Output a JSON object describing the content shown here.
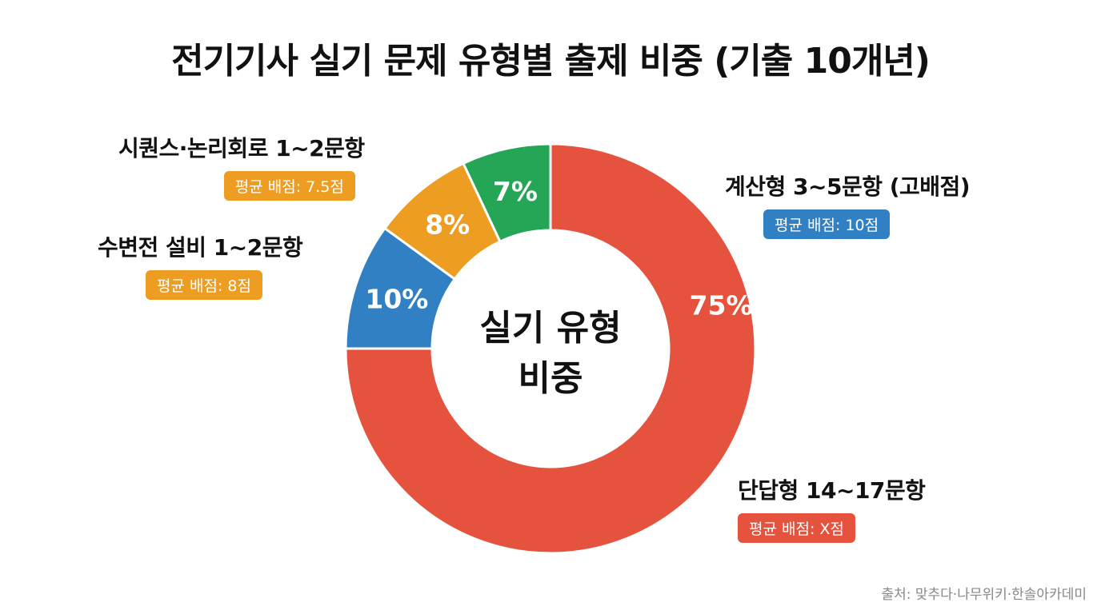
{
  "title": "전기기사 실기 문제 유형별 출제 비중 (기출 10개년)",
  "center_label": [
    "실기 유형",
    "비중"
  ],
  "source": "출처: 맞추다·나무위키·한솔아카데미",
  "colors": {
    "calc": "#e5533f",
    "blue": "#3080c3",
    "orange": "#ec9d22",
    "green": "#25a556"
  },
  "labels": {
    "short": {
      "title": "단답형 14~17문항",
      "badge": "평균 배점: X점"
    },
    "calc": {
      "title": "계산형 3~5문항 (고배점)",
      "badge": "평균 배점: 10점"
    },
    "power": {
      "title": "수변전 설비 1~2문항",
      "badge": "평균 배점: 8점"
    },
    "seq": {
      "title": "시퀀스·논리회로 1~2문항",
      "badge": "평균 배점: 7.5점"
    }
  },
  "chart_data": {
    "type": "pie",
    "title": "전기기사 실기 문제 유형별 출제 비중 (기출 10개년)",
    "slices": [
      {
        "value": 75,
        "label": "75%",
        "color": "#e5533f"
      },
      {
        "value": 10,
        "label": "10%",
        "color": "#3080c3"
      },
      {
        "value": 8,
        "label": "8%",
        "color": "#ec9d22"
      },
      {
        "value": 7,
        "label": "7%",
        "color": "#25a556"
      }
    ]
  }
}
